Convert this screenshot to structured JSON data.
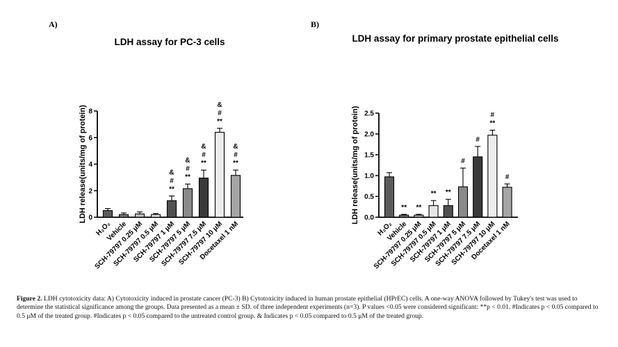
{
  "panel_labels": {
    "a": "A)",
    "b": "B)"
  },
  "chart_data": [
    {
      "type": "bar",
      "title": "LDH assay for PC-3 cells",
      "xlabel": "",
      "ylabel": "LDH release(units/mg of protein)",
      "ylim": [
        0,
        8
      ],
      "yticks": [
        0,
        2,
        4,
        6,
        8
      ],
      "ytick_labels": [
        "0",
        "2",
        "4",
        "6",
        "8"
      ],
      "categories": [
        "H₂O₂",
        "Vehicle",
        "SCH-79797 0.25 μM",
        "SCH-79797 0.5 μM",
        "SCH-79797 1 μM",
        "SCH-79797 5 μM",
        "SCH-79797 7.5 μM",
        "SCH-79797 10 μM",
        "Docetaxel 1 nM"
      ],
      "values": [
        0.5,
        0.2,
        0.25,
        0.2,
        1.25,
        2.15,
        2.95,
        6.4,
        3.15
      ],
      "errors": [
        0.15,
        0.12,
        0.15,
        0.08,
        0.35,
        0.35,
        0.6,
        0.3,
        0.4
      ],
      "bar_colors": [
        "#5c5c5c",
        "#7a7a7a",
        "#bdbdbd",
        "#e6e6e6",
        "#505050",
        "#8a8a8a",
        "#3a3a3a",
        "#ececec",
        "#a5a5a5"
      ],
      "annotations": [
        [],
        [],
        [],
        [],
        [
          "**",
          "#",
          "&"
        ],
        [
          "**",
          "#",
          "&"
        ],
        [
          "**",
          "#",
          "&"
        ],
        [
          "**",
          "#",
          "&"
        ],
        [
          "**",
          "#",
          "&"
        ]
      ],
      "grid": false
    },
    {
      "type": "bar",
      "title": "LDH assay for primary prostate epithelial cells",
      "xlabel": "",
      "ylabel": "LDH release(units/mg of protein)",
      "ylim": [
        0,
        2.5
      ],
      "yticks": [
        0,
        0.5,
        1.0,
        1.5,
        2.0,
        2.5
      ],
      "ytick_labels": [
        "0.0",
        "0.5",
        "1.0",
        "1.5",
        "2.0",
        "2.5"
      ],
      "categories": [
        "H₂O₂",
        "Vehicle",
        "SCH-79797 0.25 μM",
        "SCH-79797 0.5 μM",
        "SCH-79797 1 μM",
        "SCH-79797 5 μM",
        "SCH-79797 7.5 μM",
        "SCH-79797 10 μM",
        "Docetaxel 1 nM"
      ],
      "values": [
        0.97,
        0.05,
        0.05,
        0.28,
        0.28,
        0.73,
        1.45,
        1.97,
        0.72
      ],
      "errors": [
        0.1,
        0.02,
        0.02,
        0.12,
        0.15,
        0.45,
        0.25,
        0.12,
        0.08
      ],
      "bar_colors": [
        "#5c5c5c",
        "#7a7a7a",
        "#bdbdbd",
        "#e6e6e6",
        "#505050",
        "#8a8a8a",
        "#3a3a3a",
        "#ececec",
        "#a5a5a5"
      ],
      "annotations": [
        [],
        [
          "**"
        ],
        [
          "**"
        ],
        [
          "**"
        ],
        [
          "**"
        ],
        [
          "#"
        ],
        [
          "#"
        ],
        [
          "**",
          "#"
        ],
        [
          "#"
        ]
      ],
      "grid": false
    }
  ],
  "caption": {
    "label": "Figure 2.",
    "text": " LDH cytotoxicity data: A) Cytotoxicity induced in prostate cancer (PC-3) B) Cytotoxicity induced in human prostate epithelial (HPrEC) cells. A one-way ANOVA followed by Tukey's test was used to determine the statistical significance among the groups. Data presented as a mean ± SD. of three independent experiments (n=3). P values <0.05 were considered significant: **p < 0.01. #Indicates p < 0.05 compared to 0.5 μM of the treated group. #Indicates p < 0.05 compared to the untreated control group. & Indicates p < 0.05 compared to 0.5 μM of the treated group."
  }
}
